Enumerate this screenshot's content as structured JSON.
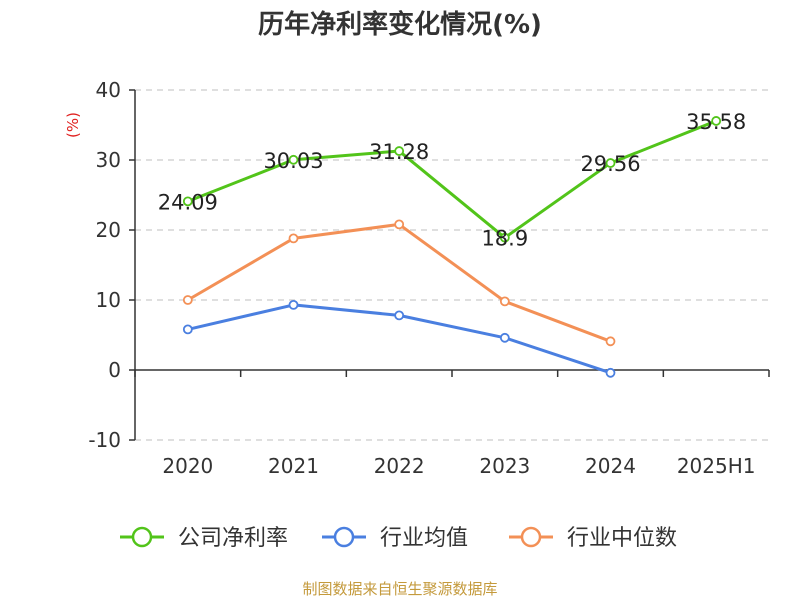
{
  "chart_data": {
    "type": "line",
    "title": "历年净利率变化情况(%)",
    "ylabel": "(%)",
    "categories": [
      "2020",
      "2021",
      "2022",
      "2023",
      "2024",
      "2025H1"
    ],
    "ylim": [
      -10,
      40
    ],
    "yticks": [
      -10,
      0,
      10,
      20,
      30,
      40
    ],
    "grid": true,
    "legend_position": "bottom",
    "series": [
      {
        "name": "公司净利率",
        "color": "#52c41a",
        "values": [
          24.09,
          30.03,
          31.28,
          18.9,
          29.56,
          35.58
        ],
        "labels": [
          "24.09",
          "30.03",
          "31.28",
          "18.9",
          "29.56",
          "35.58"
        ]
      },
      {
        "name": "行业均值",
        "color": "#4a7fe0",
        "values": [
          5.8,
          9.3,
          7.8,
          4.6,
          -0.4,
          null
        ],
        "labels": null
      },
      {
        "name": "行业中位数",
        "color": "#f39056",
        "values": [
          10.0,
          18.8,
          20.8,
          9.8,
          4.1,
          null
        ],
        "labels": null
      }
    ],
    "source": "制图数据来自恒生聚源数据库"
  }
}
